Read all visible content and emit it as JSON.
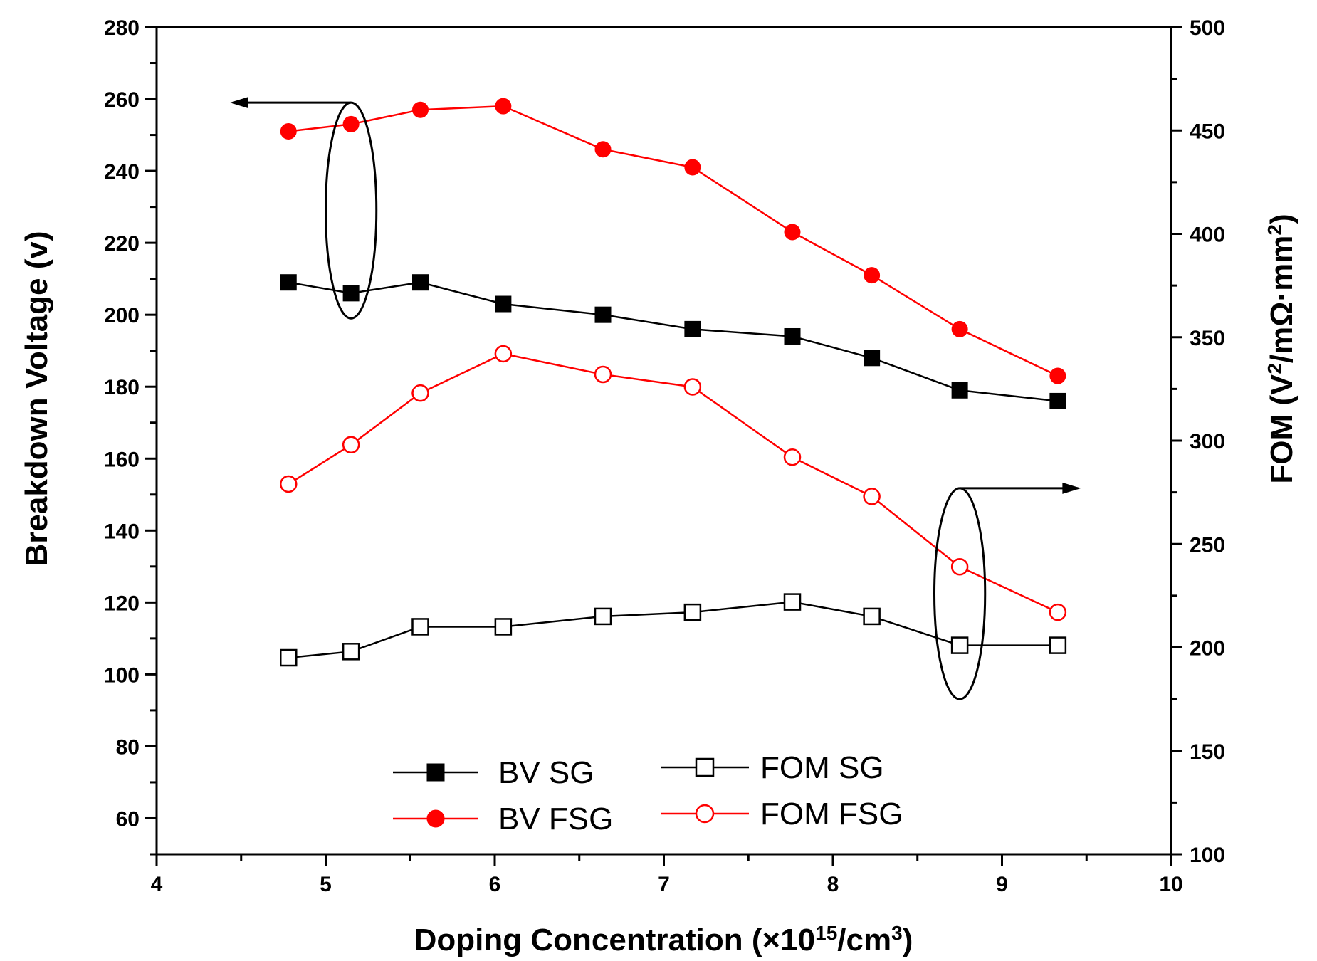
{
  "chart_data": {
    "type": "line",
    "title": "",
    "xlabel": "Doping Concentration (×10¹⁵/cm³)",
    "xlabel_parts": {
      "main": "Doping Concentration (",
      "times": "×10",
      "exp": "15",
      "unit": "/cm",
      "unit_exp": "3",
      "close": ")"
    },
    "ylabel": "Breakdown Voltage (v)",
    "y2label": "FOM (V²/mΩ·mm²)",
    "y2label_parts": {
      "a": "FOM (V",
      "a_exp": "2",
      "b": "/mΩ·mm",
      "b_exp": "2",
      "c": ")"
    },
    "xlim": [
      4,
      10
    ],
    "ylim": [
      50,
      280
    ],
    "y2lim": [
      100,
      500
    ],
    "x_ticks": [
      4,
      5,
      6,
      7,
      8,
      9,
      10
    ],
    "y_ticks": [
      60,
      80,
      100,
      120,
      140,
      160,
      180,
      200,
      220,
      240,
      260,
      280
    ],
    "y2_ticks": [
      100,
      150,
      200,
      250,
      300,
      350,
      400,
      450,
      500
    ],
    "x": [
      4.78,
      5.15,
      5.56,
      6.05,
      6.64,
      7.17,
      7.76,
      8.23,
      8.75,
      9.33
    ],
    "series": [
      {
        "name": "BV SG",
        "axis": "left",
        "color": "#000000",
        "marker": "square-filled",
        "values": [
          209,
          206,
          209,
          203,
          200,
          196,
          194,
          188,
          179,
          176
        ]
      },
      {
        "name": "BV FSG",
        "axis": "left",
        "color": "#ff0000",
        "marker": "circle-filled",
        "values": [
          251,
          253,
          257,
          258,
          246,
          241,
          223,
          211,
          196,
          183
        ]
      },
      {
        "name": "FOM SG",
        "axis": "right",
        "color": "#000000",
        "marker": "square-open",
        "values": [
          195,
          198,
          210,
          210,
          215,
          217,
          222,
          215,
          201,
          201
        ]
      },
      {
        "name": "FOM FSG",
        "axis": "right",
        "color": "#ff0000",
        "marker": "circle-open",
        "values": [
          279,
          298,
          323,
          342,
          332,
          326,
          292,
          273,
          239,
          217
        ]
      }
    ],
    "annotations": [
      {
        "name": "bv-group-ellipse",
        "x": 5.15,
        "y": 229,
        "axis": "left",
        "rx_data": 0.15,
        "ry_data": 30,
        "arrow_to_x": 4.45,
        "arrow_direction": "left"
      },
      {
        "name": "fom-group-ellipse",
        "x": 8.75,
        "y": 226,
        "axis": "right",
        "rx_data": 0.15,
        "ry_data": 51,
        "arrow_to_x": 9.45,
        "arrow_direction": "right"
      }
    ],
    "legend": {
      "position": "bottom-center",
      "entries": [
        "BV SG",
        "BV FSG",
        "FOM SG",
        "FOM FSG"
      ]
    },
    "grid": false
  }
}
